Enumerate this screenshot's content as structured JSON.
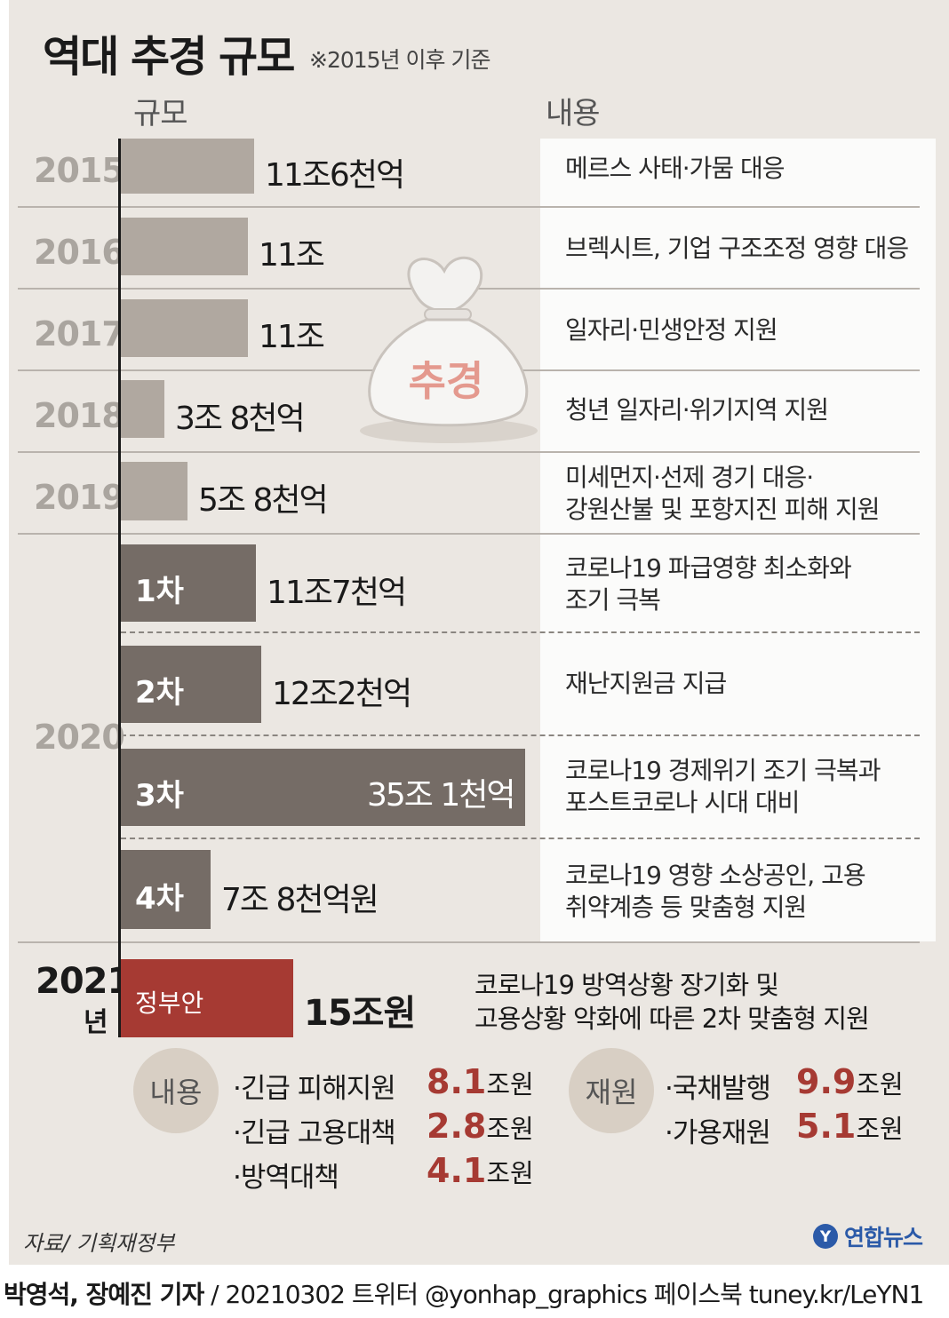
{
  "header": {
    "title": "역대 추경 규모",
    "subtitle": "※2015년 이후 기준",
    "col_scale": "규모",
    "col_content": "내용"
  },
  "illustration": {
    "bag_label": "추경"
  },
  "chart_data": {
    "type": "bar",
    "orientation": "horizontal",
    "title": "역대 추경 규모",
    "subtitle": "※2015년 이후 기준",
    "unit": "조원",
    "xlim": [
      0,
      35.1
    ],
    "rows": [
      {
        "year": "2015",
        "round": "",
        "value": 11.6,
        "value_label": "11조6천억",
        "description": [
          "메르스 사태·가뭄 대응"
        ],
        "color": "#b0a8a0"
      },
      {
        "year": "2016",
        "round": "",
        "value": 11.0,
        "value_label": "11조",
        "description": [
          "브렉시트, 기업 구조조정 영향 대응"
        ],
        "color": "#b0a8a0"
      },
      {
        "year": "2017",
        "round": "",
        "value": 11.0,
        "value_label": "11조",
        "description": [
          "일자리·민생안정 지원"
        ],
        "color": "#b0a8a0"
      },
      {
        "year": "2018",
        "round": "",
        "value": 3.8,
        "value_label": "3조 8천억",
        "description": [
          "청년 일자리·위기지역 지원"
        ],
        "color": "#b0a8a0"
      },
      {
        "year": "2019",
        "round": "",
        "value": 5.8,
        "value_label": "5조 8천억",
        "description": [
          "미세먼지·선제 경기 대응·",
          "강원산불 및 포항지진 피해 지원"
        ],
        "color": "#b0a8a0"
      },
      {
        "year": "2020",
        "round": "1차",
        "value": 11.7,
        "value_label": "11조7천억",
        "description": [
          "코로나19 파급영향 최소화와",
          "조기 극복"
        ],
        "color": "#756c66"
      },
      {
        "year": "2020",
        "round": "2차",
        "value": 12.2,
        "value_label": "12조2천억",
        "description": [
          "재난지원금 지급"
        ],
        "color": "#756c66"
      },
      {
        "year": "2020",
        "round": "3차",
        "value": 35.1,
        "value_label": "35조 1천억",
        "description": [
          "코로나19 경제위기 조기 극복과",
          "포스트코로나 시대 대비"
        ],
        "color": "#756c66"
      },
      {
        "year": "2020",
        "round": "4차",
        "value": 7.8,
        "value_label": "7조 8천억원",
        "description": [
          "코로나19 영향 소상공인, 고용",
          "취약계층 등 맞춤형 지원"
        ],
        "color": "#756c66"
      },
      {
        "year": "2021",
        "year_suffix": "년",
        "round": "정부안",
        "value": 15.0,
        "value_label": "15조원",
        "description": [
          "코로나19 방역상황 장기화 및",
          "고용상황 악화에 따른 2차 맞춤형 지원"
        ],
        "color": "#a63a33"
      }
    ]
  },
  "breakdown": {
    "content": {
      "label": "내용",
      "items": [
        {
          "name": "·긴급 피해지원",
          "amount": "8.1",
          "unit": "조원"
        },
        {
          "name": "·긴급 고용대책",
          "amount": "2.8",
          "unit": "조원"
        },
        {
          "name": "·방역대책",
          "amount": "4.1",
          "unit": "조원"
        }
      ]
    },
    "funding": {
      "label": "재원",
      "items": [
        {
          "name": "·국채발행",
          "amount": "9.9",
          "unit": "조원"
        },
        {
          "name": "·가용재원",
          "amount": "5.1",
          "unit": "조원"
        }
      ]
    }
  },
  "source": "자료/ 기획재정부",
  "logo": {
    "text": "연합뉴스",
    "mark": "Y"
  },
  "footer": {
    "author": "박영석, 장예진 기자",
    "rest": " / 20210302 트위터 @yonhap_graphics  페이스북 tuney.kr/LeYN1"
  }
}
